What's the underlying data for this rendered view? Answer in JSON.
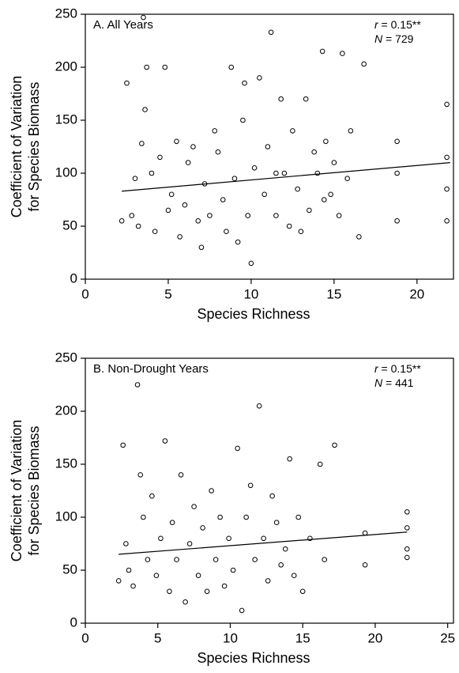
{
  "chart_data": [
    {
      "type": "scatter",
      "title": "A. All Years",
      "annotations": [
        {
          "italic": "r",
          "text": " = 0.15**"
        },
        {
          "italic": "N",
          "text": " = 729"
        }
      ],
      "x_label": "Species Richness",
      "y_label": [
        "Coefficient of Variation",
        "for Species Biomass"
      ],
      "xlim": [
        0,
        22.2
      ],
      "xticks": [
        0,
        5,
        10,
        15,
        20
      ],
      "ylim": [
        0,
        250
      ],
      "yticks": [
        0,
        50,
        100,
        150,
        200,
        250
      ],
      "color": "#000000",
      "x": [
        2.2,
        2.5,
        2.8,
        3.0,
        3.2,
        3.4,
        3.5,
        3.7,
        4.0,
        4.2,
        4.5,
        4.8,
        5.0,
        5.2,
        5.5,
        5.7,
        6.0,
        6.2,
        6.5,
        6.8,
        7.0,
        7.2,
        7.5,
        7.8,
        8.0,
        8.3,
        8.5,
        8.8,
        9.0,
        9.2,
        9.5,
        9.8,
        10.0,
        10.2,
        10.5,
        10.8,
        11.0,
        11.2,
        11.5,
        11.8,
        12.0,
        12.3,
        12.5,
        12.8,
        13.0,
        13.3,
        13.5,
        13.8,
        14.0,
        14.3,
        14.5,
        14.8,
        15.0,
        15.3,
        15.5,
        15.8,
        16.0,
        16.5,
        16.8,
        18.8,
        18.8,
        18.8,
        21.8,
        21.8,
        21.8,
        21.8,
        3.6,
        11.5,
        9.6,
        14.4
      ],
      "values": [
        55,
        185,
        60,
        95,
        50,
        128,
        247,
        200,
        100,
        45,
        115,
        200,
        65,
        80,
        130,
        40,
        70,
        110,
        125,
        55,
        30,
        90,
        60,
        140,
        120,
        75,
        45,
        200,
        95,
        35,
        150,
        60,
        15,
        105,
        190,
        80,
        125,
        233,
        60,
        170,
        100,
        50,
        140,
        85,
        45,
        170,
        65,
        120,
        100,
        215,
        130,
        80,
        110,
        60,
        213,
        95,
        140,
        40,
        203,
        130,
        100,
        55,
        165,
        115,
        85,
        55,
        160,
        100,
        185,
        75
      ],
      "fit": {
        "x": [
          2.2,
          22.0
        ],
        "y": [
          83,
          110
        ]
      }
    },
    {
      "type": "scatter",
      "title": "B. Non-Drought Years",
      "annotations": [
        {
          "italic": "r",
          "text": " = 0.15**"
        },
        {
          "italic": "N",
          "text": " = 441"
        }
      ],
      "x_label": "Species Richness",
      "y_label": [
        "Coefficient of Variation",
        "for Species Biomass"
      ],
      "xlim": [
        0,
        25.4
      ],
      "xticks": [
        0,
        5,
        10,
        15,
        20,
        25
      ],
      "ylim": [
        0,
        250
      ],
      "yticks": [
        0,
        50,
        100,
        150,
        200,
        250
      ],
      "color": "#000000",
      "x": [
        2.3,
        2.6,
        2.8,
        3.0,
        3.3,
        3.6,
        3.8,
        4.0,
        4.3,
        4.6,
        4.9,
        5.2,
        5.5,
        5.8,
        6.0,
        6.3,
        6.6,
        6.9,
        7.2,
        7.5,
        7.8,
        8.1,
        8.4,
        8.7,
        9.0,
        9.3,
        9.6,
        9.9,
        10.2,
        10.5,
        10.8,
        11.1,
        11.4,
        11.7,
        12.0,
        12.3,
        12.6,
        12.9,
        13.2,
        13.5,
        13.8,
        14.1,
        14.4,
        14.7,
        15.0,
        15.5,
        16.2,
        16.5,
        17.2,
        19.3,
        19.3,
        22.2,
        22.2,
        22.2,
        22.2
      ],
      "values": [
        40,
        168,
        75,
        50,
        35,
        225,
        140,
        100,
        60,
        120,
        45,
        80,
        172,
        30,
        95,
        60,
        140,
        20,
        75,
        110,
        45,
        90,
        30,
        125,
        60,
        100,
        35,
        80,
        50,
        165,
        12,
        100,
        130,
        60,
        205,
        80,
        40,
        120,
        95,
        55,
        70,
        155,
        45,
        100,
        30,
        80,
        150,
        60,
        168,
        85,
        55,
        105,
        90,
        70,
        62
      ],
      "fit": {
        "x": [
          2.3,
          22.2
        ],
        "y": [
          65,
          86
        ]
      }
    }
  ]
}
